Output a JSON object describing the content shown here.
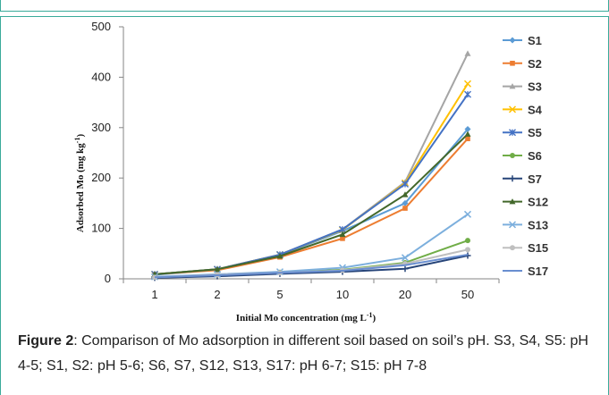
{
  "chart_data": {
    "type": "line",
    "title": "",
    "xlabel": "Initial Mo concentration (mg L",
    "xlabel_sup": "-1",
    "xlabel_end": ")",
    "ylabel": "Adsorbed Mo (mg kg",
    "ylabel_sup": "-1",
    "ylabel_end": ")",
    "categories": [
      "1",
      "2",
      "5",
      "10",
      "20",
      "50"
    ],
    "ylim": [
      0,
      500
    ],
    "yticks": [
      "0",
      "100",
      "200",
      "300",
      "400",
      "500"
    ],
    "grid": false,
    "legend_position": "right",
    "series": [
      {
        "name": "S1",
        "color": "#5b9bd5",
        "marker": "diamond",
        "values": [
          8,
          18,
          47,
          95,
          150,
          297
        ]
      },
      {
        "name": "S2",
        "color": "#ed7d31",
        "marker": "square",
        "values": [
          9,
          17,
          43,
          80,
          140,
          278
        ]
      },
      {
        "name": "S3",
        "color": "#a5a5a5",
        "marker": "triangle",
        "values": [
          9,
          19,
          48,
          98,
          192,
          447
        ]
      },
      {
        "name": "S4",
        "color": "#ffc000",
        "marker": "x",
        "values": [
          9,
          19,
          48,
          97,
          190,
          387
        ]
      },
      {
        "name": "S5",
        "color": "#4472c4",
        "marker": "star",
        "values": [
          9,
          19,
          48,
          98,
          188,
          366
        ]
      },
      {
        "name": "S6",
        "color": "#70ad47",
        "marker": "circle",
        "values": [
          3,
          8,
          13,
          18,
          32,
          76
        ]
      },
      {
        "name": "S7",
        "color": "#264478",
        "marker": "plus",
        "values": [
          2,
          5,
          10,
          14,
          20,
          46
        ]
      },
      {
        "name": "S12",
        "color": "#43682b",
        "marker": "triangle",
        "values": [
          9,
          19,
          45,
          88,
          167,
          287
        ]
      },
      {
        "name": "S13",
        "color": "#7cafdd",
        "marker": "x",
        "values": [
          4,
          9,
          14,
          22,
          42,
          128
        ]
      },
      {
        "name": "S15",
        "color": "#bfbfbf",
        "marker": "circle",
        "values": [
          3,
          8,
          12,
          17,
          30,
          58
        ]
      },
      {
        "name": "S17",
        "color": "#698ed0",
        "marker": "none",
        "values": [
          3,
          7,
          12,
          16,
          27,
          48
        ]
      }
    ]
  },
  "caption": {
    "label": "Figure 2",
    "text": ": Comparison of Mo adsorption in different soil based on soil’s pH. S3, S4, S5: pH 4-5; S1, S2: pH 5-6; S6, S7, S12, S13, S17: pH 6-7; S15: pH 7-8"
  }
}
